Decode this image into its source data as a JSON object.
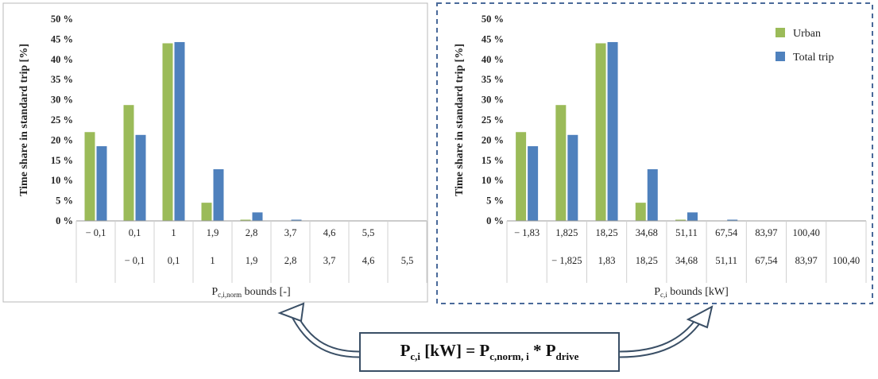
{
  "chart_data": [
    {
      "type": "bar",
      "ylabel": "Time share in standard trip [%]",
      "xlabel_main": "P",
      "xlabel_sub": "c,i,norm",
      "xlabel_rest": " bounds [-]",
      "ylim": [
        0,
        50
      ],
      "ytick_labels": [
        "0 %",
        "5 %",
        "10 %",
        "15 %",
        "20 %",
        "25 %",
        "30 %",
        "35 %",
        "40 %",
        "45 %",
        "50 %"
      ],
      "upper_bounds": [
        "− 0,1",
        "0,1",
        "1",
        "1,9",
        "2,8",
        "3,7",
        "4,6",
        "5,5",
        ""
      ],
      "lower_bounds": [
        "",
        "− 0,1",
        "0,1",
        "1",
        "1,9",
        "2,8",
        "3,7",
        "4,6",
        "5,5"
      ],
      "series": [
        {
          "name": "Urban",
          "values": [
            22,
            28.7,
            44,
            4.5,
            0.3,
            0,
            0,
            0,
            0
          ]
        },
        {
          "name": "Total trip",
          "values": [
            18.5,
            21.3,
            44.3,
            12.8,
            2.1,
            0.3,
            0,
            0,
            0
          ]
        }
      ],
      "legend": false,
      "border_style": "solid"
    },
    {
      "type": "bar",
      "ylabel": "Time share in standard trip [%]",
      "xlabel_main": "P",
      "xlabel_sub": "c,i",
      "xlabel_rest": " bounds [kW]",
      "ylim": [
        0,
        50
      ],
      "ytick_labels": [
        "0 %",
        "5 %",
        "10 %",
        "15 %",
        "20 %",
        "25 %",
        "30 %",
        "35 %",
        "40 %",
        "45 %",
        "50 %"
      ],
      "upper_bounds": [
        "− 1,83",
        "1,825",
        "18,25",
        "34,68",
        "51,11",
        "67,54",
        "83,97",
        "100,40",
        ""
      ],
      "lower_bounds": [
        "",
        "− 1,825",
        "1,83",
        "18,25",
        "34,68",
        "51,11",
        "67,54",
        "83,97",
        "100,40"
      ],
      "series": [
        {
          "name": "Urban",
          "values": [
            22,
            28.7,
            44,
            4.5,
            0.3,
            0,
            0,
            0,
            0
          ]
        },
        {
          "name": "Total trip",
          "values": [
            18.5,
            21.3,
            44.3,
            12.8,
            2.1,
            0.3,
            0,
            0,
            0
          ]
        }
      ],
      "legend": true,
      "legend_position": "top-right",
      "border_style": "dashed"
    }
  ],
  "colors": {
    "urban": "#9bbb59",
    "total": "#4f81bd",
    "arrow": "#3a4f66",
    "dashed_border": "#4a6a9a"
  },
  "formula": {
    "lhs_main": "P",
    "lhs_sub": "c,i",
    "lhs_rest": " [kW] = ",
    "rhs_main": "P",
    "rhs_sub": "c,norm, i",
    "rhs_rest": " * ",
    "rhs2_main": "P",
    "rhs2_sub": "drive"
  }
}
